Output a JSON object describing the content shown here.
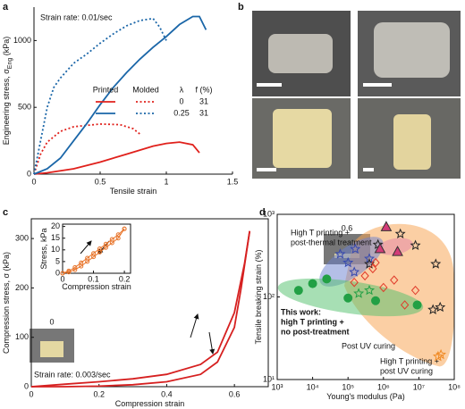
{
  "chart_data": [
    {
      "type": "line",
      "label": "a",
      "annotations": [
        {
          "lines": [
            "Strain rate: 0.01/sec"
          ]
        }
      ],
      "x_label": "Tensile strain",
      "y_label": {
        "text": "Engineering stress, σ",
        "sub": "Eng",
        "unit": " (kPa)"
      },
      "xlim": [
        0,
        1.5
      ],
      "xticks": [
        0,
        0.5,
        1,
        1.5
      ],
      "ylim": [
        0,
        1250
      ],
      "yticks": [
        0,
        500,
        1000
      ],
      "legend": {
        "headers": [
          "Printed",
          "Molded",
          "λ",
          "f (%)"
        ],
        "rows": [
          [
            "0",
            "31"
          ],
          [
            "0.25",
            "31"
          ]
        ]
      },
      "series": [
        {
          "color": "#e0201b",
          "style": "solid",
          "x": [
            0,
            0.1,
            0.3,
            0.5,
            0.7,
            0.9,
            1.0,
            1.1,
            1.2,
            1.25
          ],
          "values": [
            0,
            10,
            40,
            90,
            150,
            210,
            230,
            240,
            220,
            160
          ]
        },
        {
          "color": "#e0201b",
          "style": "dotted",
          "x": [
            0,
            0.05,
            0.1,
            0.2,
            0.3,
            0.5,
            0.65,
            0.75,
            0.8
          ],
          "values": [
            0,
            150,
            240,
            320,
            355,
            375,
            370,
            340,
            300
          ]
        },
        {
          "color": "#1a66a8",
          "style": "solid",
          "x": [
            0,
            0.1,
            0.2,
            0.3,
            0.4,
            0.5,
            0.6,
            0.7,
            0.8,
            0.9,
            1.0,
            1.1,
            1.2,
            1.25,
            1.3
          ],
          "values": [
            0,
            40,
            120,
            250,
            380,
            520,
            650,
            760,
            860,
            950,
            1030,
            1120,
            1180,
            1180,
            1080
          ]
        },
        {
          "color": "#1a66a8",
          "style": "dotted",
          "x": [
            0,
            0.05,
            0.1,
            0.15,
            0.2,
            0.3,
            0.4,
            0.5,
            0.6,
            0.7,
            0.8,
            0.9,
            0.95,
            1.0
          ],
          "values": [
            0,
            250,
            500,
            650,
            720,
            830,
            900,
            980,
            1050,
            1110,
            1150,
            1165,
            1100,
            1000
          ]
        }
      ]
    },
    {
      "type": "line",
      "label": "c",
      "annotations": [
        {
          "lines": [
            "Strain rate: 0.003/sec"
          ]
        },
        {
          "lines": [
            "0"
          ]
        },
        {
          "lines": [
            "0.6"
          ]
        }
      ],
      "x_label": "Compression strain",
      "y_label": {
        "text": "Compression stress, σ",
        "sub": "",
        "unit": " (kPa)"
      },
      "xlim": [
        0,
        0.7
      ],
      "xticks": [
        0,
        0.2,
        0.4,
        0.6
      ],
      "ylim": [
        0,
        340
      ],
      "yticks": [
        0,
        100,
        200,
        300
      ],
      "series": [
        {
          "color": "#d62020",
          "style": "solid",
          "x": [
            0,
            0.1,
            0.2,
            0.3,
            0.4,
            0.5,
            0.55,
            0.6,
            0.63,
            0.645
          ],
          "values": [
            0,
            5,
            10,
            16,
            25,
            45,
            70,
            150,
            250,
            315
          ]
        },
        {
          "color": "#d62020",
          "style": "solid",
          "x": [
            0.645,
            0.62,
            0.6,
            0.55,
            0.5,
            0.4,
            0.3,
            0.2,
            0.1,
            0
          ],
          "values": [
            315,
            200,
            120,
            50,
            25,
            10,
            4,
            1,
            0,
            0
          ]
        }
      ]
    },
    {
      "type": "line",
      "markers": true,
      "x_label": "Compression strain",
      "y_label": {
        "text": "Stress, kPa",
        "sub": "",
        "unit": ""
      },
      "xlim": [
        0,
        0.22
      ],
      "xticks": [
        0,
        0.1,
        0.2
      ],
      "ylim": [
        0,
        21
      ],
      "yticks": [
        0,
        5,
        10,
        15,
        20
      ],
      "series": [
        {
          "color": "#e8742a",
          "style": "solid",
          "x": [
            0,
            0.02,
            0.04,
            0.06,
            0.08,
            0.1,
            0.12,
            0.14,
            0.16,
            0.18,
            0.2
          ],
          "values": [
            0,
            1,
            2.5,
            4.5,
            6.5,
            8.5,
            10.5,
            12.5,
            14.5,
            16.5,
            19
          ]
        },
        {
          "color": "#e8742a",
          "style": "solid",
          "x": [
            0,
            0.02,
            0.04,
            0.06,
            0.08,
            0.1,
            0.12,
            0.14,
            0.16,
            0.18,
            0.2
          ],
          "values": [
            0,
            0.5,
            1.5,
            3,
            5,
            7,
            9,
            11,
            13,
            15,
            19
          ]
        }
      ]
    },
    {
      "type": "scatter",
      "label": "d",
      "xlog": true,
      "ylog": true,
      "x_label": "Young's modulus (Pa)",
      "y_label": {
        "text": "Tensile breaking strain (%)",
        "sub": "",
        "unit": ""
      },
      "xlim": [
        1000,
        100000000
      ],
      "xticks": [
        {
          "value": 1000,
          "label": "10³"
        },
        {
          "value": 10000,
          "label": "10⁴"
        },
        {
          "value": 100000,
          "label": "10⁵"
        },
        {
          "value": 1000000,
          "label": "10⁶"
        },
        {
          "value": 10000000,
          "label": "10⁷"
        },
        {
          "value": 100000000,
          "label": "10⁸"
        }
      ],
      "ylim": [
        10,
        1000
      ],
      "yticks": [
        {
          "value": 10,
          "label": "10¹"
        },
        {
          "value": 100,
          "label": "10²"
        },
        {
          "value": 1000,
          "label": "10³"
        }
      ],
      "annotations": [
        {
          "lines": [
            "High T printing +",
            "post-thermal treatment"
          ]
        },
        {
          "lines": [
            "This work:",
            "high T printing +",
            "no post-treatment"
          ],
          "color": "#22a045",
          "bold": true
        },
        {
          "lines": [
            "Post UV curing"
          ]
        },
        {
          "lines": [
            "High T printing +",
            "post UV curing"
          ]
        }
      ],
      "series": [
        {
          "marker": "circle",
          "color": "#22a045",
          "filled": true,
          "x": [
            4000,
            10000,
            25000,
            100000,
            600000,
            9000000
          ],
          "values": [
            120,
            145,
            165,
            97,
            90,
            80
          ]
        },
        {
          "marker": "star",
          "color": "#3548b0",
          "filled": false,
          "x": [
            60000,
            100000,
            160000,
            400000,
            150000
          ],
          "values": [
            330,
            260,
            380,
            290,
            200
          ]
        },
        {
          "marker": "star",
          "color": "#222222",
          "filled": false,
          "x": [
            400000,
            700000,
            3000000,
            8000000,
            30000000,
            40000000,
            25000000
          ],
          "values": [
            250,
            430,
            580,
            420,
            250,
            75,
            70
          ]
        },
        {
          "marker": "diamond",
          "color": "#e03a2a",
          "filled": false,
          "x": [
            150000,
            300000,
            500000,
            1000000,
            2000000,
            4000000,
            8000000,
            600000
          ],
          "values": [
            150,
            180,
            220,
            130,
            160,
            80,
            120,
            260
          ]
        },
        {
          "marker": "triangle",
          "color": "#d23c78",
          "filled": true,
          "x": [
            1200000,
            2500000,
            800000
          ],
          "values": [
            700,
            350,
            380
          ]
        },
        {
          "marker": "star",
          "color": "#f08a24",
          "filled": false,
          "x": [
            35000000,
            42000000
          ],
          "values": [
            19,
            20
          ]
        },
        {
          "marker": "star",
          "color": "#22a045",
          "filled": false,
          "x": [
            200000,
            400000
          ],
          "values": [
            110,
            120
          ]
        }
      ]
    }
  ],
  "photo_panel": {
    "label": "b"
  }
}
